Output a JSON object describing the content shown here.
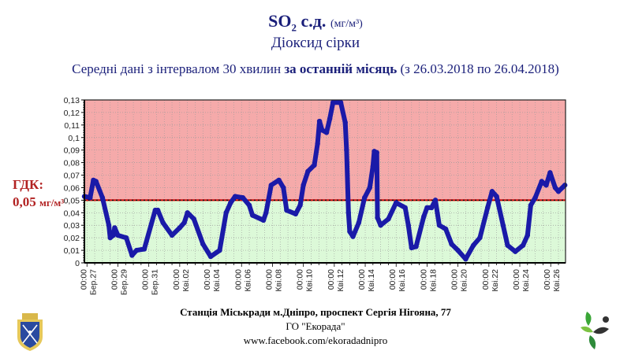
{
  "header": {
    "title_main": "SO",
    "title_sub": "2",
    "title_rest": " с.д. ",
    "title_unit": "(мг/м³)",
    "subtitle": "Діоксид сірки",
    "desc_pre": "Середні дані з інтервалом 30 хвилин ",
    "desc_bold": "за останній місяць",
    "desc_post": " (з 26.03.2018 по 26.04.2018)"
  },
  "limit_label": {
    "line1": "ГДК:",
    "value": "0,05",
    "unit": "мг/м³"
  },
  "footer": {
    "station": "Станція Міськради м.Дніпро, проспект Сергія Нігояна, 77",
    "org": "ГО \"Екорада\"",
    "link": "www.facebook.com/ekoradadnipro"
  },
  "logos": {
    "left": "dnipro-coat-of-arms",
    "right": "ekorada-logo"
  },
  "colors": {
    "above_limit": "#f5aaaa",
    "below_limit": "#dcf9d8",
    "series": "#1a1aa8",
    "limit_line": "#cc0000"
  },
  "chart_data": {
    "type": "line",
    "title": "SO₂ с.д. (мг/м³)",
    "xlabel": "",
    "ylabel": "",
    "ylim": [
      0,
      0.13
    ],
    "xlim": [
      "2018-03-26 20:00",
      "2018-04-26 23:00"
    ],
    "yticks": [
      "0",
      "0,01",
      "0,02",
      "0,03",
      "0,04",
      "0,05",
      "0,06",
      "0,07",
      "0,08",
      "0,09",
      "0,1",
      "0,11",
      "0,12",
      "0,13"
    ],
    "ytick_values": [
      0,
      0.01,
      0.02,
      0.03,
      0.04,
      0.05,
      0.06,
      0.07,
      0.08,
      0.09,
      0.1,
      0.11,
      0.12,
      0.13
    ],
    "xticks": [
      {
        "time": "00:00",
        "date": "Бер.27",
        "at": "2018-03-27 00:00"
      },
      {
        "time": "00:00",
        "date": "Бер.29",
        "at": "2018-03-29 00:00"
      },
      {
        "time": "00:00",
        "date": "Бер.31",
        "at": "2018-03-31 00:00"
      },
      {
        "time": "00:00",
        "date": "Кві.02",
        "at": "2018-04-02 00:00"
      },
      {
        "time": "00:00",
        "date": "Кві.04",
        "at": "2018-04-04 00:00"
      },
      {
        "time": "00:00",
        "date": "Кві.06",
        "at": "2018-04-06 00:00"
      },
      {
        "time": "00:00",
        "date": "Кві.08",
        "at": "2018-04-08 00:00"
      },
      {
        "time": "00:00",
        "date": "Кві.10",
        "at": "2018-04-10 00:00"
      },
      {
        "time": "00:00",
        "date": "Кві.12",
        "at": "2018-04-12 00:00"
      },
      {
        "time": "00:00",
        "date": "Кві.14",
        "at": "2018-04-14 00:00"
      },
      {
        "time": "00:00",
        "date": "Кві.16",
        "at": "2018-04-16 00:00"
      },
      {
        "time": "00:00",
        "date": "Кві.18",
        "at": "2018-04-18 00:00"
      },
      {
        "time": "00:00",
        "date": "Кві.20",
        "at": "2018-04-20 00:00"
      },
      {
        "time": "00:00",
        "date": "Кві.22",
        "at": "2018-04-22 00:00"
      },
      {
        "time": "00:00",
        "date": "Кві.24",
        "at": "2018-04-24 00:00"
      },
      {
        "time": "00:00",
        "date": "Кві.26",
        "at": "2018-04-26 00:00"
      }
    ],
    "limit": 0.05,
    "grid": true,
    "series": [
      {
        "points": [
          [
            "2018-03-26 20:00",
            0.053
          ],
          [
            "2018-03-27 05:00",
            0.052
          ],
          [
            "2018-03-27 10:00",
            0.066
          ],
          [
            "2018-03-27 14:00",
            0.065
          ],
          [
            "2018-03-28 00:00",
            0.052
          ],
          [
            "2018-03-28 10:00",
            0.03
          ],
          [
            "2018-03-28 12:00",
            0.02
          ],
          [
            "2018-03-28 17:00",
            0.022
          ],
          [
            "2018-03-28 19:00",
            0.028
          ],
          [
            "2018-03-29 00:00",
            0.022
          ],
          [
            "2018-03-29 13:00",
            0.02
          ],
          [
            "2018-03-29 22:00",
            0.006
          ],
          [
            "2018-03-30 05:00",
            0.01
          ],
          [
            "2018-03-30 17:00",
            0.011
          ],
          [
            "2018-03-31 10:00",
            0.042
          ],
          [
            "2018-03-31 14:00",
            0.042
          ],
          [
            "2018-03-31 22:00",
            0.032
          ],
          [
            "2018-04-01 12:00",
            0.022
          ],
          [
            "2018-04-02 00:00",
            0.028
          ],
          [
            "2018-04-02 07:00",
            0.032
          ],
          [
            "2018-04-02 12:00",
            0.04
          ],
          [
            "2018-04-02 22:00",
            0.035
          ],
          [
            "2018-04-03 12:00",
            0.015
          ],
          [
            "2018-04-04 00:00",
            0.005
          ],
          [
            "2018-04-04 14:00",
            0.01
          ],
          [
            "2018-04-05 00:00",
            0.04
          ],
          [
            "2018-04-05 07:00",
            0.048
          ],
          [
            "2018-04-05 14:00",
            0.053
          ],
          [
            "2018-04-06 02:00",
            0.052
          ],
          [
            "2018-04-06 12:00",
            0.046
          ],
          [
            "2018-04-06 17:00",
            0.038
          ],
          [
            "2018-04-07 10:00",
            0.034
          ],
          [
            "2018-04-07 14:00",
            0.04
          ],
          [
            "2018-04-07 22:00",
            0.062
          ],
          [
            "2018-04-08 10:00",
            0.066
          ],
          [
            "2018-04-08 17:00",
            0.06
          ],
          [
            "2018-04-08 22:00",
            0.042
          ],
          [
            "2018-04-09 12:00",
            0.039
          ],
          [
            "2018-04-09 19:00",
            0.046
          ],
          [
            "2018-04-10 00:00",
            0.062
          ],
          [
            "2018-04-10 07:00",
            0.073
          ],
          [
            "2018-04-10 17:00",
            0.078
          ],
          [
            "2018-04-10 22:00",
            0.095
          ],
          [
            "2018-04-11 01:00",
            0.113
          ],
          [
            "2018-04-11 05:00",
            0.106
          ],
          [
            "2018-04-11 12:00",
            0.104
          ],
          [
            "2018-04-11 17:00",
            0.115
          ],
          [
            "2018-04-11 22:00",
            0.128
          ],
          [
            "2018-04-12 10:00",
            0.128
          ],
          [
            "2018-04-12 17:00",
            0.112
          ],
          [
            "2018-04-12 19:00",
            0.09
          ],
          [
            "2018-04-12 22:00",
            0.04
          ],
          [
            "2018-04-13 00:00",
            0.025
          ],
          [
            "2018-04-13 05:00",
            0.021
          ],
          [
            "2018-04-13 14:00",
            0.032
          ],
          [
            "2018-04-13 23:00",
            0.052
          ],
          [
            "2018-04-14 07:00",
            0.06
          ],
          [
            "2018-04-14 12:00",
            0.077
          ],
          [
            "2018-04-14 14:00",
            0.089
          ],
          [
            "2018-04-14 18:00",
            0.088
          ],
          [
            "2018-04-14 19:00",
            0.036
          ],
          [
            "2018-04-15 00:00",
            0.03
          ],
          [
            "2018-04-15 12:00",
            0.035
          ],
          [
            "2018-04-16 00:00",
            0.048
          ],
          [
            "2018-04-16 14:00",
            0.044
          ],
          [
            "2018-04-16 19:00",
            0.03
          ],
          [
            "2018-04-17 00:00",
            0.012
          ],
          [
            "2018-04-17 07:00",
            0.013
          ],
          [
            "2018-04-17 19:00",
            0.037
          ],
          [
            "2018-04-18 00:00",
            0.044
          ],
          [
            "2018-04-18 07:00",
            0.044
          ],
          [
            "2018-04-18 13:00",
            0.05
          ],
          [
            "2018-04-18 19:00",
            0.03
          ],
          [
            "2018-04-19 05:00",
            0.027
          ],
          [
            "2018-04-19 14:00",
            0.015
          ],
          [
            "2018-04-20 00:00",
            0.01
          ],
          [
            "2018-04-20 12:00",
            0.003
          ],
          [
            "2018-04-21 00:00",
            0.014
          ],
          [
            "2018-04-21 10:00",
            0.02
          ],
          [
            "2018-04-21 22:00",
            0.044
          ],
          [
            "2018-04-22 05:00",
            0.057
          ],
          [
            "2018-04-22 12:00",
            0.053
          ],
          [
            "2018-04-22 22:00",
            0.03
          ],
          [
            "2018-04-23 05:00",
            0.014
          ],
          [
            "2018-04-23 17:00",
            0.009
          ],
          [
            "2018-04-24 05:00",
            0.014
          ],
          [
            "2018-04-24 12:00",
            0.022
          ],
          [
            "2018-04-24 17:00",
            0.046
          ],
          [
            "2018-04-25 00:00",
            0.052
          ],
          [
            "2018-04-25 10:00",
            0.065
          ],
          [
            "2018-04-25 17:00",
            0.062
          ],
          [
            "2018-04-25 23:00",
            0.072
          ],
          [
            "2018-04-26 07:00",
            0.06
          ],
          [
            "2018-04-26 12:00",
            0.057
          ],
          [
            "2018-04-26 22:00",
            0.062
          ]
        ]
      }
    ]
  }
}
